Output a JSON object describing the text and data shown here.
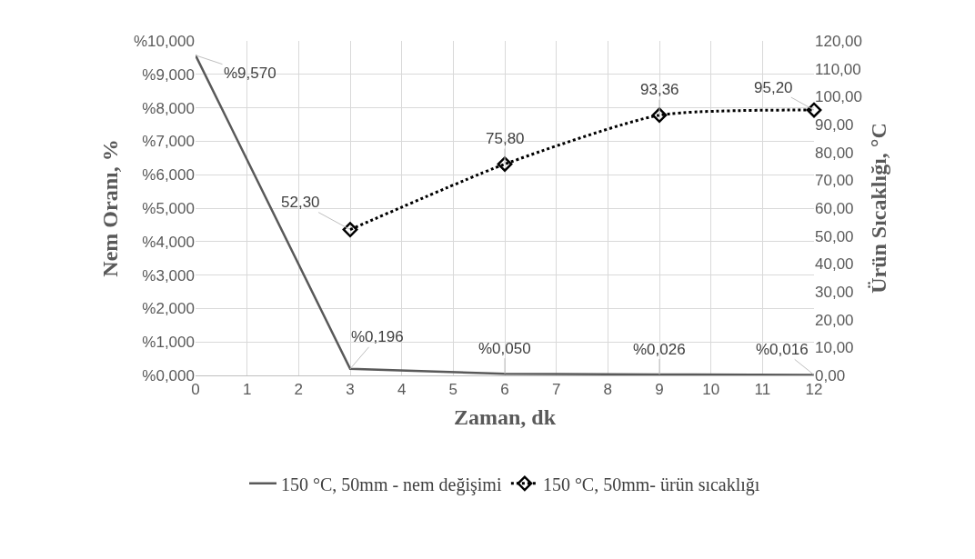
{
  "chart_data": {
    "type": "line",
    "xlabel": "Zaman, dk",
    "ylabel": "Nem Oranı, %",
    "y2label": "Ürün Sıcaklığı, °C",
    "xlim": [
      0,
      12
    ],
    "xticks": [
      0,
      1,
      2,
      3,
      4,
      5,
      6,
      7,
      8,
      9,
      10,
      11,
      12
    ],
    "ylim": [
      0,
      10
    ],
    "yticks": [
      {
        "value": 0,
        "label": "%0,000"
      },
      {
        "value": 1,
        "label": "%1,000"
      },
      {
        "value": 2,
        "label": "%2,000"
      },
      {
        "value": 3,
        "label": "%3,000"
      },
      {
        "value": 4,
        "label": "%4,000"
      },
      {
        "value": 5,
        "label": "%5,000"
      },
      {
        "value": 6,
        "label": "%6,000"
      },
      {
        "value": 7,
        "label": "%7,000"
      },
      {
        "value": 8,
        "label": "%8,000"
      },
      {
        "value": 9,
        "label": "%9,000"
      },
      {
        "value": 10,
        "label": "%10,000"
      }
    ],
    "y2lim": [
      0,
      120
    ],
    "y2ticks": [
      {
        "value": 0,
        "label": "0,00"
      },
      {
        "value": 10,
        "label": "10,00"
      },
      {
        "value": 20,
        "label": "20,00"
      },
      {
        "value": 30,
        "label": "30,00"
      },
      {
        "value": 40,
        "label": "40,00"
      },
      {
        "value": 50,
        "label": "50,00"
      },
      {
        "value": 60,
        "label": "60,00"
      },
      {
        "value": 70,
        "label": "70,00"
      },
      {
        "value": 80,
        "label": "80,00"
      },
      {
        "value": 90,
        "label": "90,00"
      },
      {
        "value": 100,
        "label": "100,00"
      },
      {
        "value": 110,
        "label": "110,00"
      },
      {
        "value": 120,
        "label": "120,00"
      }
    ],
    "grid": true,
    "legend": "bottom",
    "series": [
      {
        "name": "150 °C, 50mm - nem değişimi",
        "color": "#595959",
        "x": [
          0,
          3,
          6,
          9,
          12
        ],
        "values": [
          9.57,
          0.196,
          0.05,
          0.026,
          0.016
        ],
        "value_labels": [
          "%9,570",
          "%0,196",
          "%0,050",
          "%0,026",
          "%0,016"
        ],
        "marker": "none",
        "line_style": "solid"
      },
      {
        "name": "150 °C, 50mm- ürün sıcaklığı",
        "color": "#000000",
        "axis": "y2",
        "x": [
          3,
          6,
          9,
          12
        ],
        "values": [
          52.3,
          75.8,
          93.36,
          95.2
        ],
        "value_labels": [
          "52,30",
          "75,80",
          "93,36",
          "95,20"
        ],
        "marker": "diamond",
        "line_style": "dotted"
      }
    ]
  }
}
